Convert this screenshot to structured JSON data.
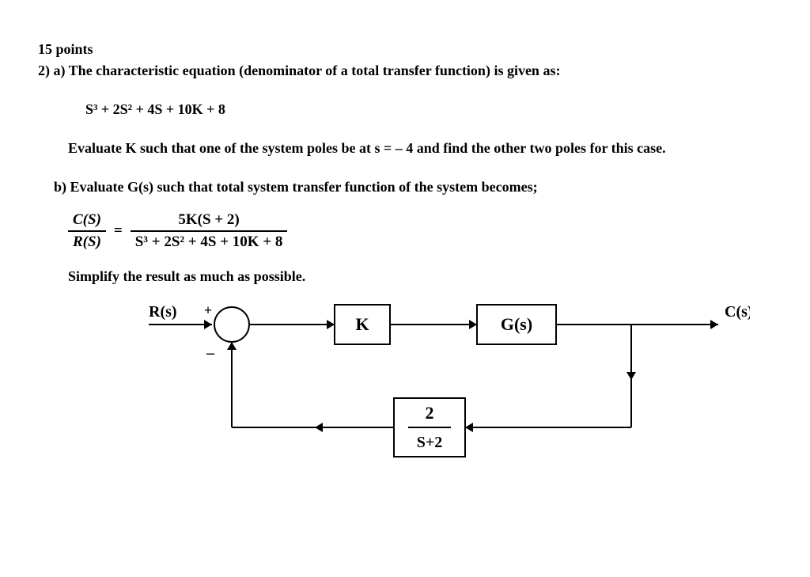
{
  "points_line": "15 points",
  "q_prefix": "2) a) ",
  "q_a_text": "The characteristic equation (denominator of a total transfer function) is given as:",
  "poly": "S³ + 2S² + 4S + 10K + 8",
  "eval_k_text": "Evaluate K such that one of the system poles be at s = – 4 and find the other two poles for this case.",
  "q_b_prefix": "b) ",
  "q_b_text": "Evaluate G(s) such that total system transfer function of the system becomes;",
  "tf": {
    "lhs_num": "C(S)",
    "lhs_den": "R(S)",
    "equals": "=",
    "rhs_num": "5K(S + 2)",
    "rhs_den": "S³ + 2S² + 4S + 10K + 8"
  },
  "simplify_text": "Simplify the result as much as possible.",
  "diagram": {
    "R_label": "R(s)",
    "C_label": "C(s)",
    "plus": "+",
    "minus": "–",
    "K_block": "K",
    "G_block": "G(s)",
    "fb_num": "2",
    "fb_den": "S+2",
    "colors": {
      "stroke": "#000000",
      "fill": "#ffffff",
      "text": "#000000"
    },
    "line_width": 2,
    "arrow_head": 10
  }
}
